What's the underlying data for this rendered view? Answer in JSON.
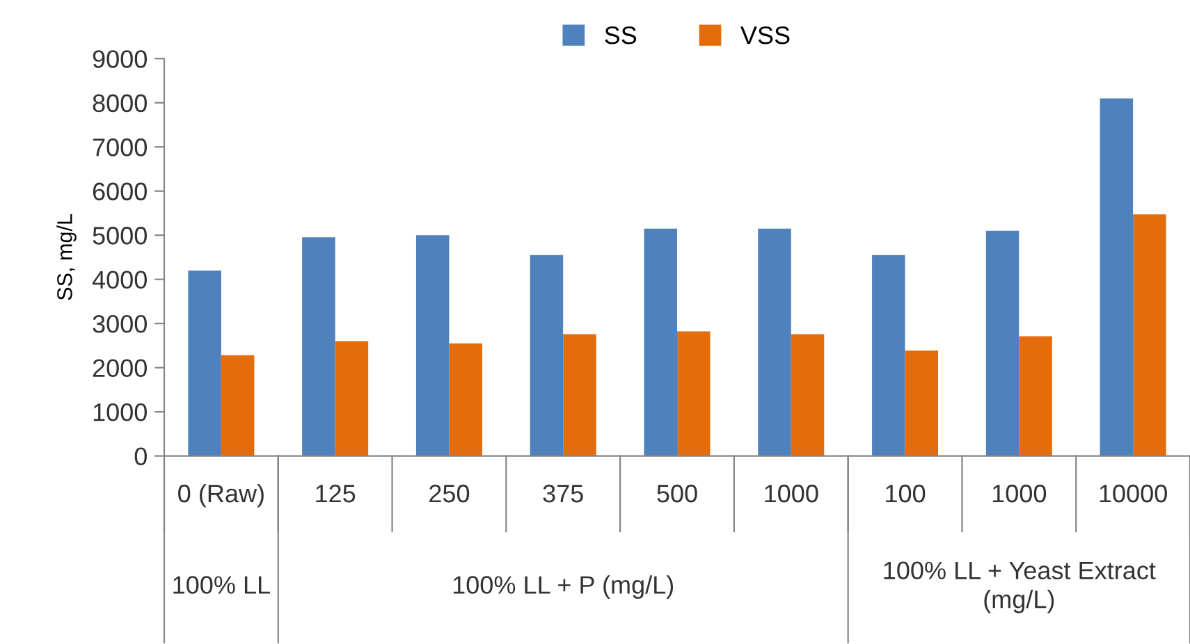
{
  "chart_data": {
    "type": "bar",
    "ylabel": "SS, mg/L",
    "categories": [
      "0 (Raw)",
      "125",
      "250",
      "375",
      "500",
      "1000",
      "100",
      "1000",
      "10000"
    ],
    "series": [
      {
        "name": "SS",
        "color": "#4f81bd",
        "values": [
          4200,
          4950,
          5000,
          4550,
          5150,
          5150,
          4550,
          5100,
          8100
        ]
      },
      {
        "name": "VSS",
        "color": "#e46c0a",
        "values": [
          2280,
          2600,
          2550,
          2760,
          2820,
          2760,
          2390,
          2710,
          5470
        ]
      }
    ],
    "ylim": [
      0,
      9000
    ],
    "yticks": [
      0,
      1000,
      2000,
      3000,
      4000,
      5000,
      6000,
      7000,
      8000,
      9000
    ],
    "legend": "top",
    "annotations": [
      "100% LL",
      "100% LL + P (mg/L)",
      "100% LL + Yeast Extract\n(mg/L)"
    ]
  }
}
